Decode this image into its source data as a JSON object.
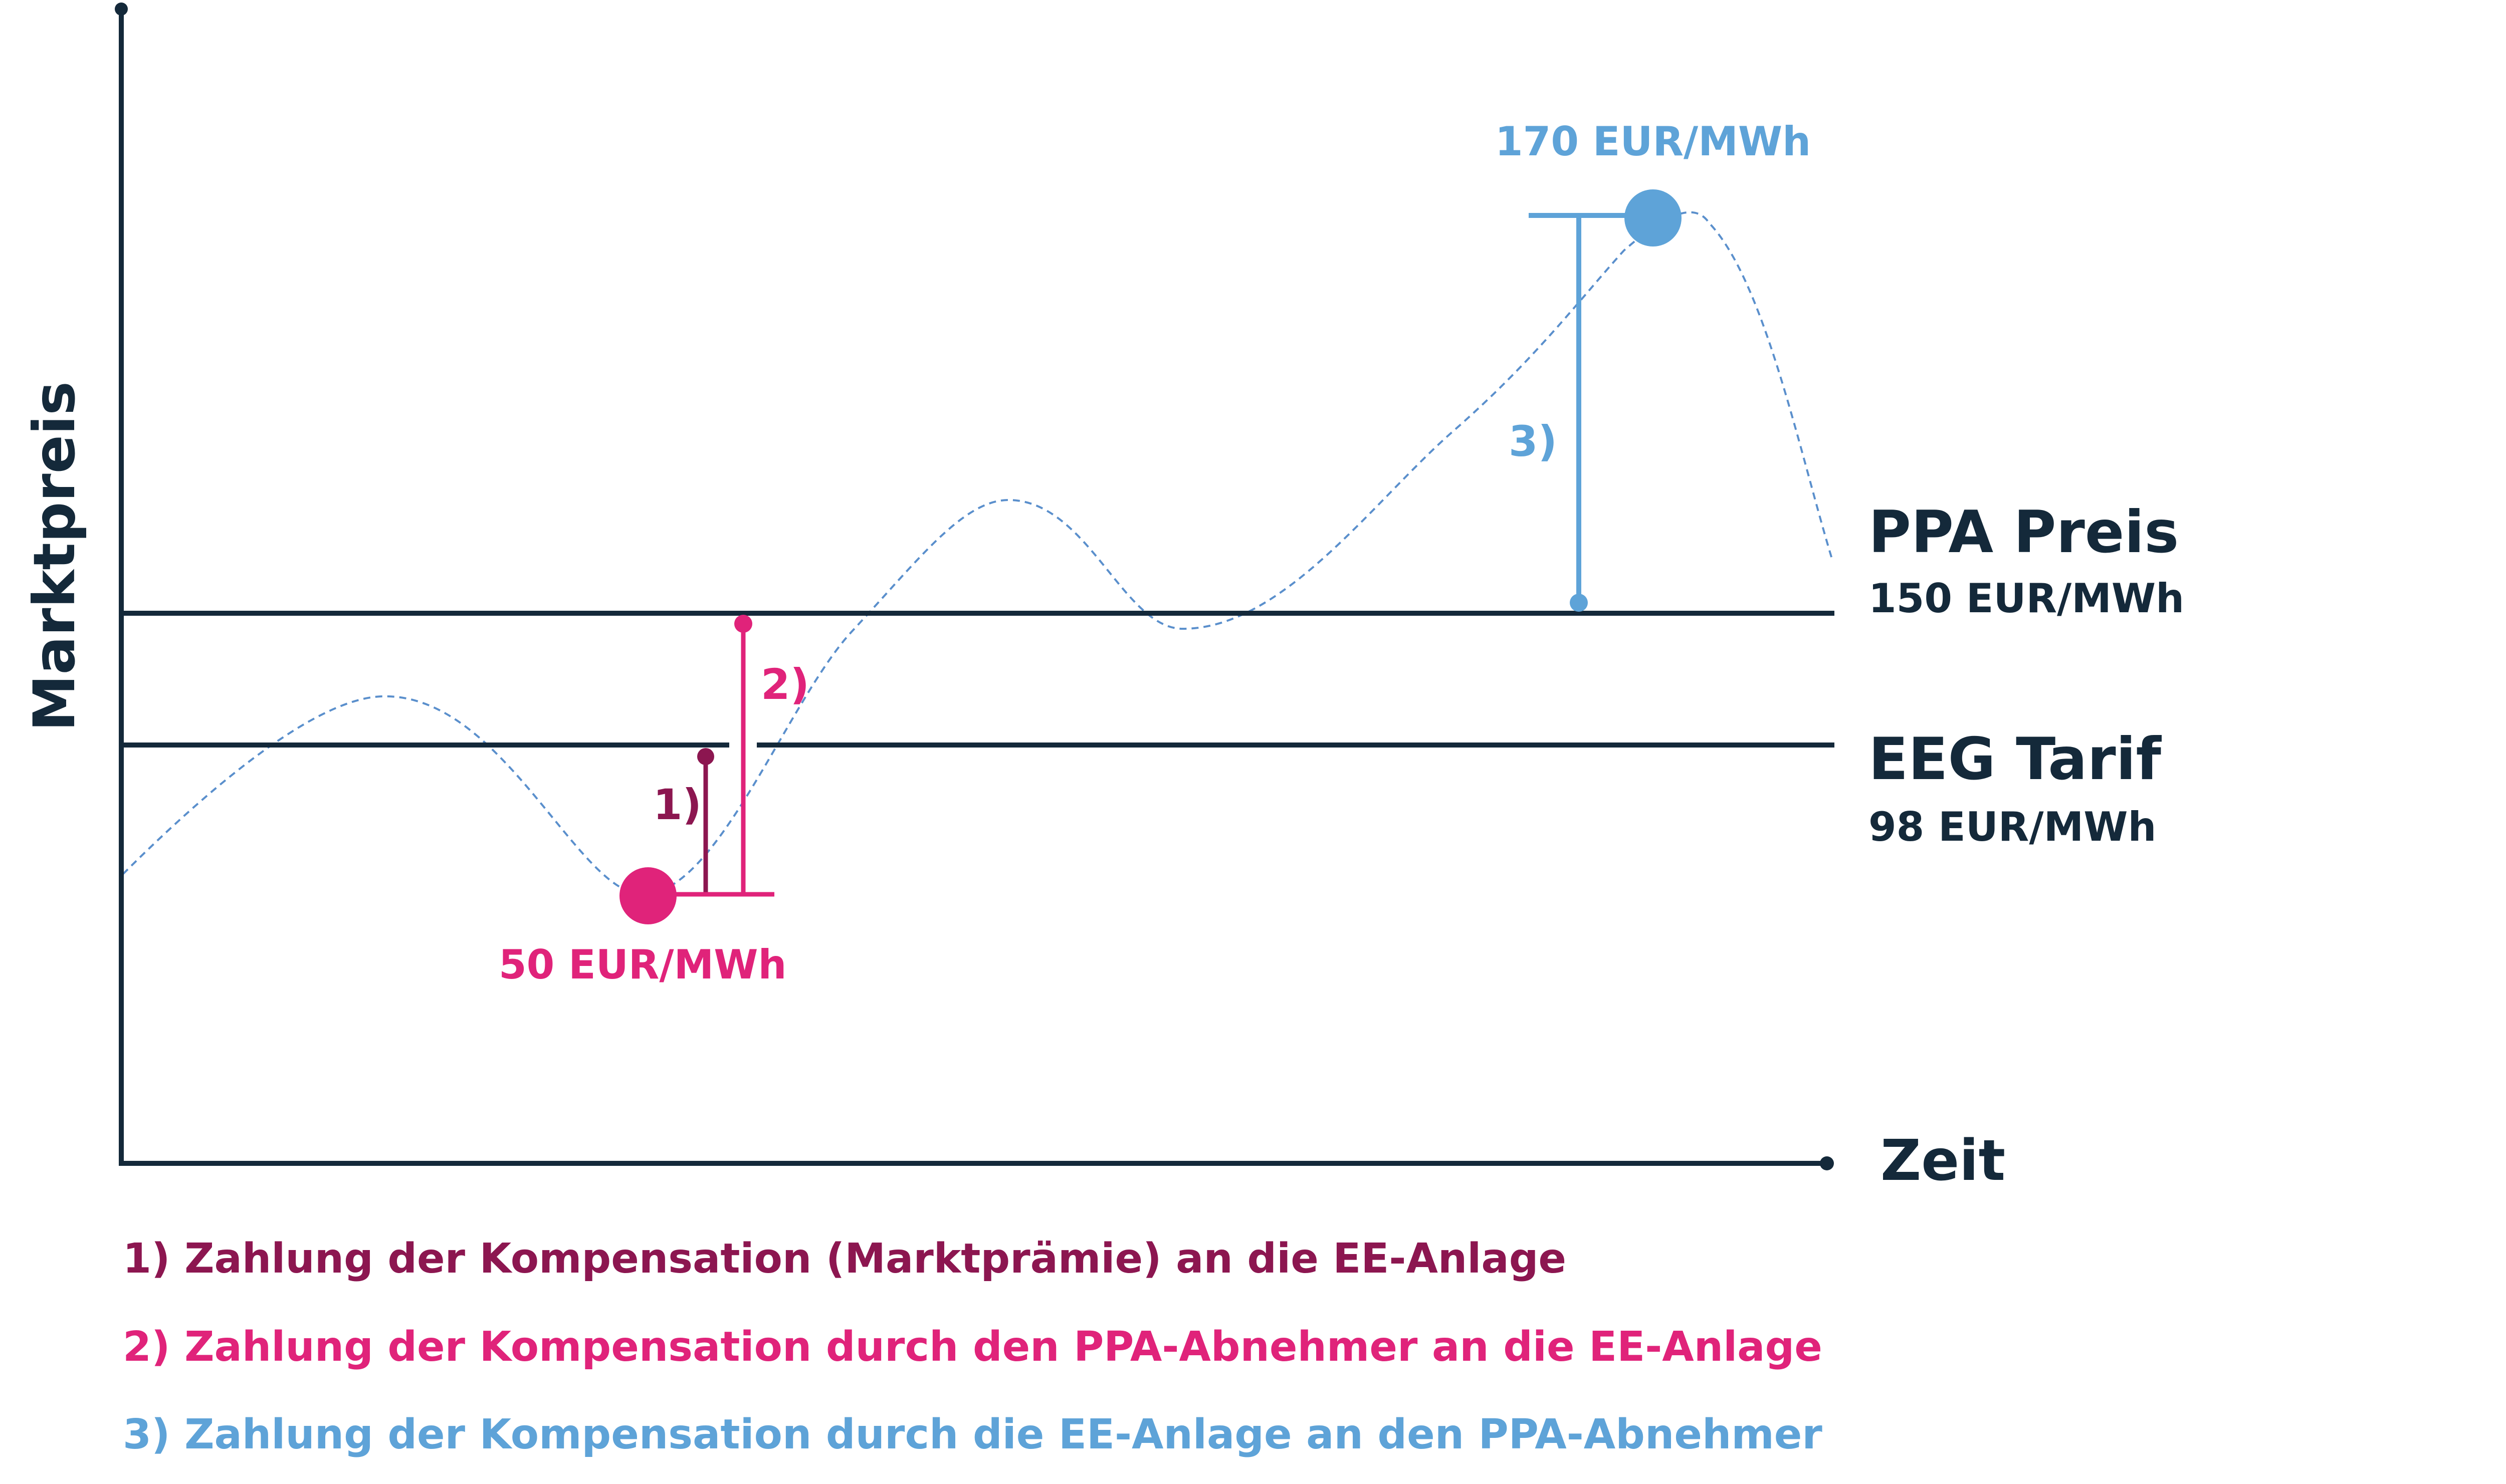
{
  "axes": {
    "y_label": "Marktpreis",
    "x_label": "Zeit"
  },
  "price_lines": {
    "ppa": {
      "title": "PPA Preis",
      "value": "150 EUR/MWh",
      "price": 150
    },
    "eeg": {
      "title": "EEG Tarif",
      "value": "98 EUR/MWh",
      "price": 98
    }
  },
  "market_points": {
    "low": {
      "label": "50 EUR/MWh",
      "price": 50
    },
    "high": {
      "label": "170 EUR/MWh",
      "price": 170
    }
  },
  "markers": {
    "m1": "1)",
    "m2": "2)",
    "m3": "3)"
  },
  "legend": [
    "1) Zahlung der Kompensation (Marktprämie) an die EE-Anlage",
    "2) Zahlung der Kompensation durch den PPA-Abnehmer an die EE-Anlage",
    "3) Zahlung der Kompensation durch die EE-Anlage an den PPA-Abnehmer"
  ],
  "colors": {
    "axis": "#14293a",
    "dark_magenta": "#8c1650",
    "pink": "#e0237a",
    "blue": "#5ea3d8",
    "curve": "#5a8fcc"
  }
}
